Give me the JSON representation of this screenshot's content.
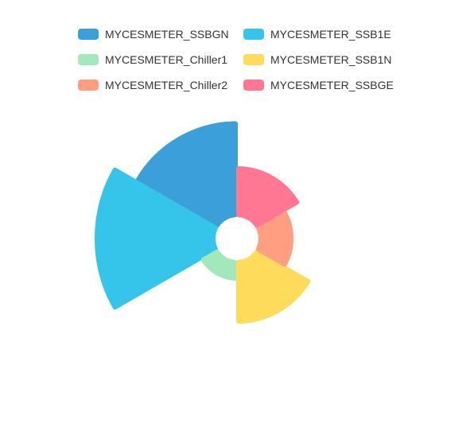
{
  "chart_data": {
    "type": "pie",
    "title": "",
    "legend_placement": "top",
    "series": [
      {
        "name": "MYCESMETER_SSBGN",
        "value": 27,
        "color": "#3BA0DA"
      },
      {
        "name": "MYCESMETER_SSB1E",
        "value": 40,
        "color": "#35C4EA"
      },
      {
        "name": "MYCESMETER_Chiller1",
        "value": 3,
        "color": "#A2E8BB"
      },
      {
        "name": "MYCESMETER_SSB1N",
        "value": 14,
        "color": "#FFDB5C"
      },
      {
        "name": "MYCESMETER_Chiller2",
        "value": 6,
        "color": "#FF9F7F"
      },
      {
        "name": "MYCESMETER_SSBGE",
        "value": 10,
        "color": "#FF7793"
      }
    ]
  }
}
